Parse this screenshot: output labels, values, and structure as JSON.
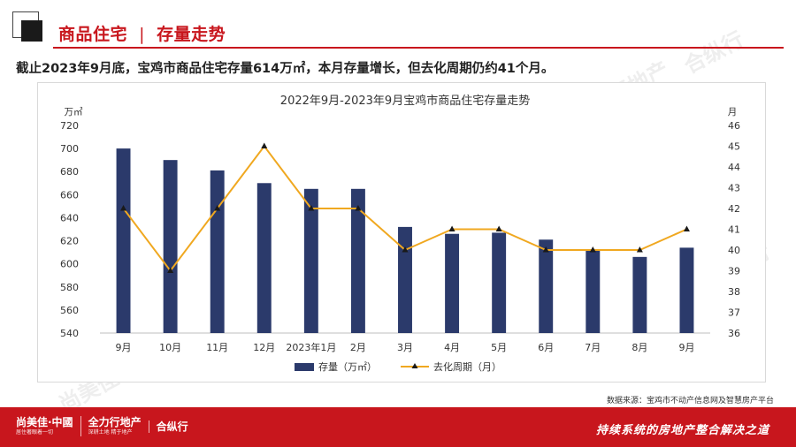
{
  "header": {
    "section_title": "商品住宅",
    "section_subtitle": "存量走势",
    "summary": "截止2023年9月底，宝鸡市商品住宅存量614万㎡，本月存量增长，但去化周期仍约41个月。"
  },
  "chart_data": {
    "type": "bar+line",
    "title": "2022年9月-2023年9月宝鸡市商品住宅存量走势",
    "categories": [
      "9月",
      "10月",
      "11月",
      "12月",
      "2023年1月",
      "2月",
      "3月",
      "4月",
      "5月",
      "6月",
      "7月",
      "8月",
      "9月"
    ],
    "series": [
      {
        "name": "存量（万㎡）",
        "type": "bar",
        "axis": "left",
        "color": "#2b3a6b",
        "values": [
          700,
          690,
          681,
          670,
          665,
          665,
          632,
          626,
          627,
          621,
          612,
          606,
          614
        ]
      },
      {
        "name": "去化周期（月）",
        "type": "line",
        "axis": "right",
        "color": "#f0a820",
        "values": [
          42,
          39,
          42,
          45,
          42,
          42,
          40,
          41,
          41,
          40,
          40,
          40,
          41
        ]
      }
    ],
    "y_left": {
      "unit": "万㎡",
      "min": 540,
      "max": 720,
      "ticks": [
        540,
        560,
        580,
        600,
        620,
        640,
        660,
        680,
        700,
        720
      ]
    },
    "y_right": {
      "unit": "月",
      "min": 36,
      "max": 46,
      "ticks": [
        36,
        37,
        38,
        39,
        40,
        41,
        42,
        43,
        44,
        45,
        46
      ]
    },
    "grid": false,
    "legend_position": "bottom"
  },
  "source_note": "数据来源：宝鸡市不动产信息网及智慧房产平台",
  "footer": {
    "brands": [
      {
        "name": "尚美佳·中國",
        "sub": "居住著眼着一切"
      },
      {
        "name": "全力行地产",
        "sub": "深耕土地 精于地产"
      },
      {
        "name": "合纵行",
        "sub": ""
      }
    ],
    "slogan": "持续系统的房地产整合解决之道"
  },
  "watermark_texts": [
    "尚美佳·中國",
    "全力行地产",
    "合纵行"
  ],
  "colors": {
    "accent": "#c8161d",
    "bar": "#2b3a6b",
    "line": "#f0a820"
  }
}
